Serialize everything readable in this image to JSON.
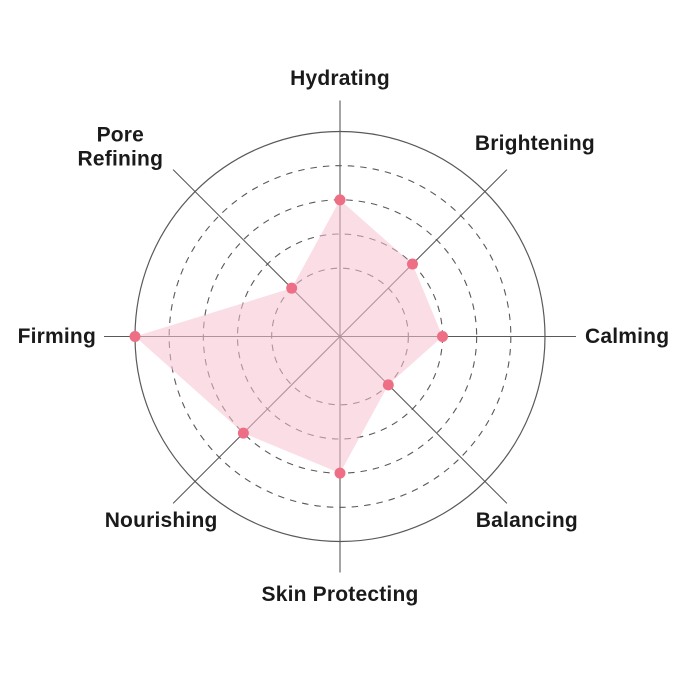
{
  "page": {
    "background": "#ffffff",
    "title": ""
  },
  "chart_data": {
    "type": "radar",
    "title": "",
    "categories": [
      "Hydrating",
      "Brightening",
      "Calming",
      "Balancing",
      "Skin Protecting",
      "Nourishing",
      "Firming",
      "Pore Refining"
    ],
    "values": [
      4,
      3,
      3,
      2,
      4,
      4,
      6,
      2
    ],
    "scale": {
      "min": 0,
      "max": 6,
      "rings": [
        2,
        3,
        4,
        5,
        6
      ],
      "outer_ring_style": "solid",
      "inner_ring_style": "dashed"
    },
    "label_lines": [
      [
        "Hydrating"
      ],
      [
        "Brightening"
      ],
      [
        "Calming"
      ],
      [
        "Balancing"
      ],
      [
        "Skin Protecting"
      ],
      [
        "Nourishing"
      ],
      [
        "Firming"
      ],
      [
        "Pore",
        "Refining"
      ]
    ],
    "legend": null,
    "grid": true,
    "style": {
      "fill_color": "rgba(248,193,207,0.55)",
      "point_color": "#ee6f85",
      "grid_color": "#595959",
      "axis_color": "#595959",
      "label_color": "#1a1a1a"
    }
  }
}
